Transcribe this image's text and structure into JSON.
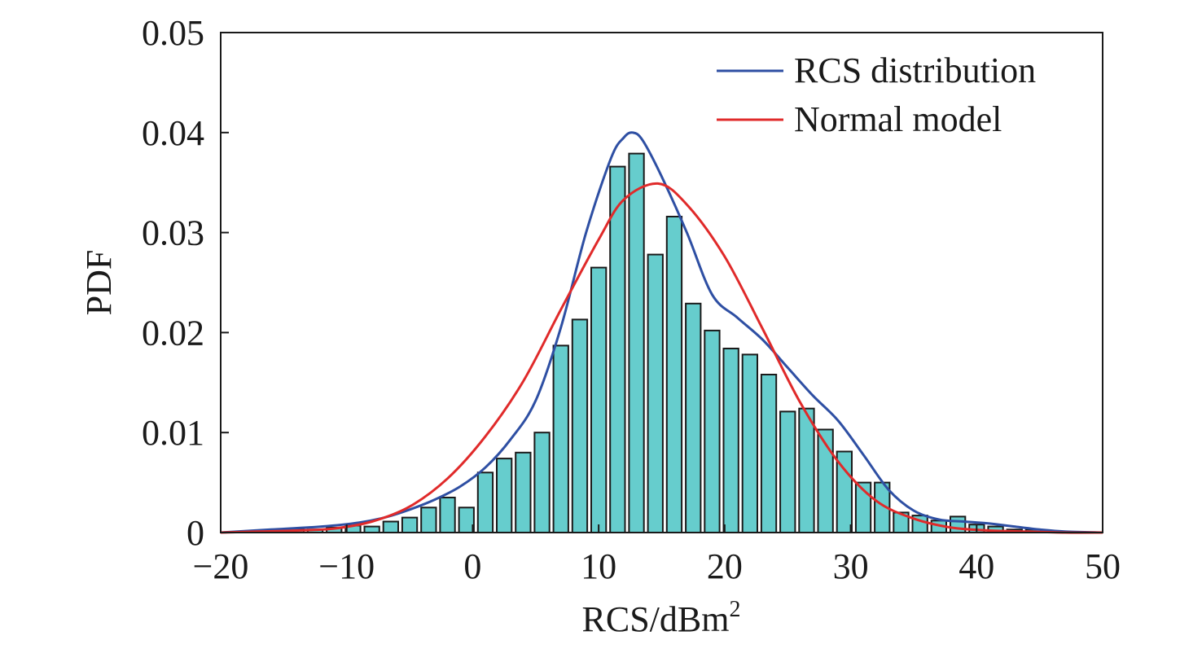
{
  "chart_data": {
    "type": "bar",
    "title": "",
    "xlabel": "RCS/dBm",
    "xlabel_superscript": "2",
    "ylabel": "PDF",
    "xlim": [
      -20,
      50
    ],
    "ylim": [
      0,
      0.05
    ],
    "xticks": [
      -20,
      -10,
      0,
      10,
      20,
      30,
      40,
      50
    ],
    "xtick_labels": [
      "−20",
      "−10",
      "0",
      "10",
      "20",
      "30",
      "40",
      "50"
    ],
    "yticks": [
      0,
      0.01,
      0.02,
      0.03,
      0.04,
      0.05
    ],
    "ytick_labels": [
      "0",
      "0.01",
      "0.02",
      "0.03",
      "0.04",
      "0.05"
    ],
    "grid": false,
    "legend_position": "top-right",
    "colors": {
      "bar_fill": "#66cdcd",
      "bar_edge": "#1a1a1a",
      "rcs_line": "#2e4fa3",
      "normal_line": "#e02a2a"
    },
    "histogram": {
      "name": "",
      "bin_width": 1.5,
      "bin_centers": [
        -15.5,
        -14,
        -12.5,
        -11,
        -9.5,
        -8,
        -6.5,
        -5,
        -3.5,
        -2,
        -0.5,
        1,
        2.5,
        4,
        5.5,
        7,
        8.5,
        10,
        11.5,
        13,
        14.5,
        16,
        17.5,
        19,
        20.5,
        22,
        23.5,
        25,
        26.5,
        28,
        29.5,
        31,
        32.5,
        34,
        35.5,
        37,
        38.5,
        40,
        41.5,
        43,
        44.5
      ],
      "values": [
        0.0003,
        0.0004,
        0.0003,
        0.0005,
        0.0007,
        0.0006,
        0.0011,
        0.0015,
        0.0025,
        0.0035,
        0.0025,
        0.006,
        0.0074,
        0.008,
        0.01,
        0.0187,
        0.0213,
        0.0265,
        0.0366,
        0.0379,
        0.0278,
        0.0316,
        0.0229,
        0.0202,
        0.0184,
        0.0178,
        0.0158,
        0.0121,
        0.0124,
        0.0103,
        0.0081,
        0.005,
        0.005,
        0.002,
        0.0017,
        0.0012,
        0.0016,
        0.0008,
        0.0006,
        0.0003,
        0.0003
      ]
    },
    "series": [
      {
        "name": "RCS distribution",
        "type": "line",
        "x": [
          -20,
          -16,
          -12,
          -9,
          -7,
          -5,
          -3,
          -1,
          1,
          3,
          5,
          7,
          9,
          11,
          12,
          12.7,
          13.5,
          15,
          17,
          19,
          21,
          23,
          25,
          27,
          29,
          31,
          33,
          35,
          37,
          39,
          41,
          43,
          45,
          47,
          50
        ],
        "y": [
          0.0,
          0.0003,
          0.0006,
          0.001,
          0.0015,
          0.0023,
          0.0033,
          0.0046,
          0.0065,
          0.0093,
          0.0132,
          0.0205,
          0.03,
          0.0375,
          0.0395,
          0.04,
          0.0392,
          0.0356,
          0.03,
          0.0238,
          0.0215,
          0.0193,
          0.0165,
          0.0137,
          0.0112,
          0.0078,
          0.0043,
          0.0022,
          0.0013,
          0.0011,
          0.0009,
          0.0006,
          0.0003,
          0.0001,
          0.0
        ]
      },
      {
        "name": "Normal model",
        "type": "line",
        "mean": 14.7,
        "std": 11.4,
        "x": [
          -20,
          -17,
          -14,
          -11,
          -8,
          -5,
          -2,
          1,
          4,
          7,
          10,
          12,
          14.7,
          17,
          20,
          23,
          26,
          29,
          32,
          35,
          38,
          41,
          44,
          47,
          50
        ],
        "y": [
          0.0,
          0.0001,
          0.0002,
          0.0004,
          0.0011,
          0.0026,
          0.0054,
          0.0096,
          0.0151,
          0.0223,
          0.0293,
          0.0333,
          0.0349,
          0.0328,
          0.0276,
          0.0204,
          0.013,
          0.0071,
          0.0032,
          0.0014,
          0.0005,
          0.0002,
          0.0001,
          0.0,
          0.0
        ]
      }
    ]
  }
}
